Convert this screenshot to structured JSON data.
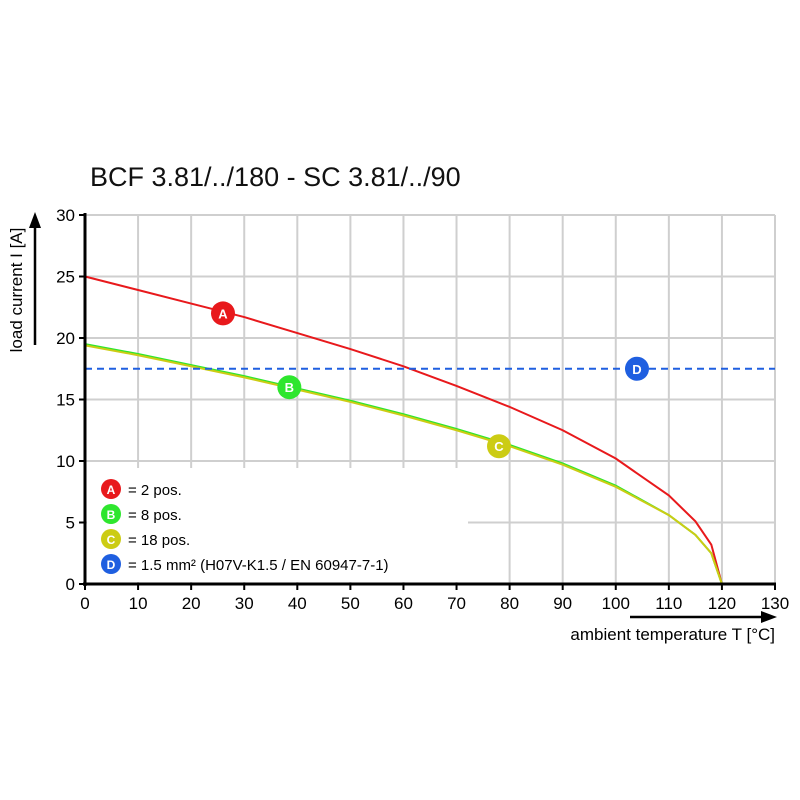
{
  "chart_data": {
    "type": "line",
    "title": "BCF 3.81/../180 - SC 3.81/../90",
    "xlabel": "ambient temperature T [°C]",
    "ylabel": "load current I [A]",
    "xlim": [
      0,
      130
    ],
    "ylim": [
      0,
      30
    ],
    "x_ticks": [
      0,
      10,
      20,
      30,
      40,
      50,
      60,
      70,
      80,
      90,
      100,
      110,
      120,
      130
    ],
    "y_ticks": [
      0,
      5,
      10,
      15,
      20,
      25,
      30
    ],
    "grid": true,
    "legend_position": "bottom-left",
    "x": [
      0,
      10,
      20,
      30,
      40,
      50,
      60,
      70,
      80,
      90,
      100,
      110,
      115,
      118,
      120
    ],
    "series": [
      {
        "marker": "A",
        "name": "= 2 pos.",
        "color": "#e8191c",
        "label_at": [
          26,
          22
        ],
        "values": [
          25,
          23.9,
          22.8,
          21.7,
          20.4,
          19.1,
          17.7,
          16.1,
          14.4,
          12.5,
          10.2,
          7.2,
          5.1,
          3.2,
          0
        ]
      },
      {
        "marker": "B",
        "name": "= 8 pos.",
        "color": "#2ee62e",
        "label_at": [
          38.5,
          16
        ],
        "values": [
          19.5,
          18.7,
          17.8,
          16.9,
          15.9,
          14.9,
          13.8,
          12.6,
          11.3,
          9.8,
          8.0,
          5.6,
          4.0,
          2.5,
          0
        ]
      },
      {
        "marker": "C",
        "name": "= 18 pos.",
        "color": "#cccc14",
        "label_at": [
          78,
          11.2
        ],
        "values": [
          19.4,
          18.6,
          17.7,
          16.8,
          15.8,
          14.8,
          13.7,
          12.5,
          11.2,
          9.7,
          7.9,
          5.6,
          4.0,
          2.5,
          0
        ]
      },
      {
        "marker": "D",
        "name": "= 1.5 mm² (H07V-K1.5 / EN 60947-7-1)",
        "color": "#1f5fe0",
        "label_at": [
          104,
          17.5
        ],
        "dashed": true,
        "constant": 17.5
      }
    ]
  }
}
